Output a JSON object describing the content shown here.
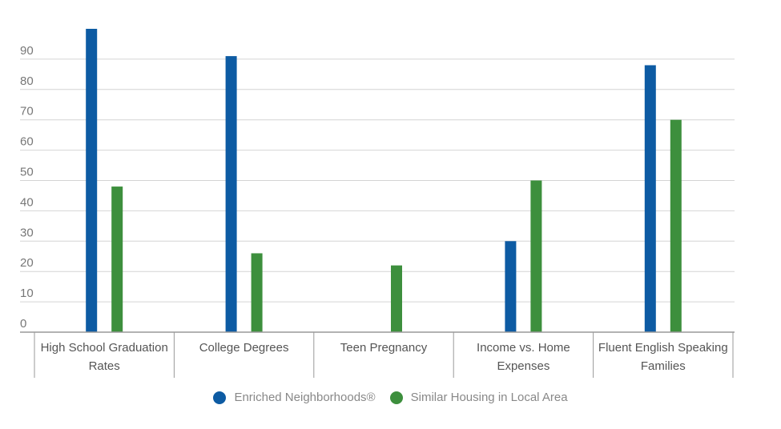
{
  "chart_data": {
    "type": "bar",
    "categories": [
      [
        "High School Graduation",
        "Rates"
      ],
      [
        "College Degrees"
      ],
      [
        "Teen Pregnancy"
      ],
      [
        "Income vs. Home",
        "Expenses"
      ],
      [
        "Fluent English Speaking",
        "Families"
      ]
    ],
    "series": [
      {
        "name": "Enriched Neighborhoods®",
        "color": "#0d5ba3",
        "values": [
          100,
          91,
          0,
          30,
          88
        ]
      },
      {
        "name": "Similar Housing in Local Area",
        "color": "#3d8f3d",
        "values": [
          48,
          26,
          22,
          50,
          70
        ]
      }
    ],
    "yticks": [
      0,
      10,
      20,
      30,
      40,
      50,
      60,
      70,
      80,
      90
    ],
    "ylim": [
      0,
      100
    ],
    "grid": true,
    "legend_position": "bottom-center",
    "title": "",
    "xlabel": "",
    "ylabel": ""
  }
}
